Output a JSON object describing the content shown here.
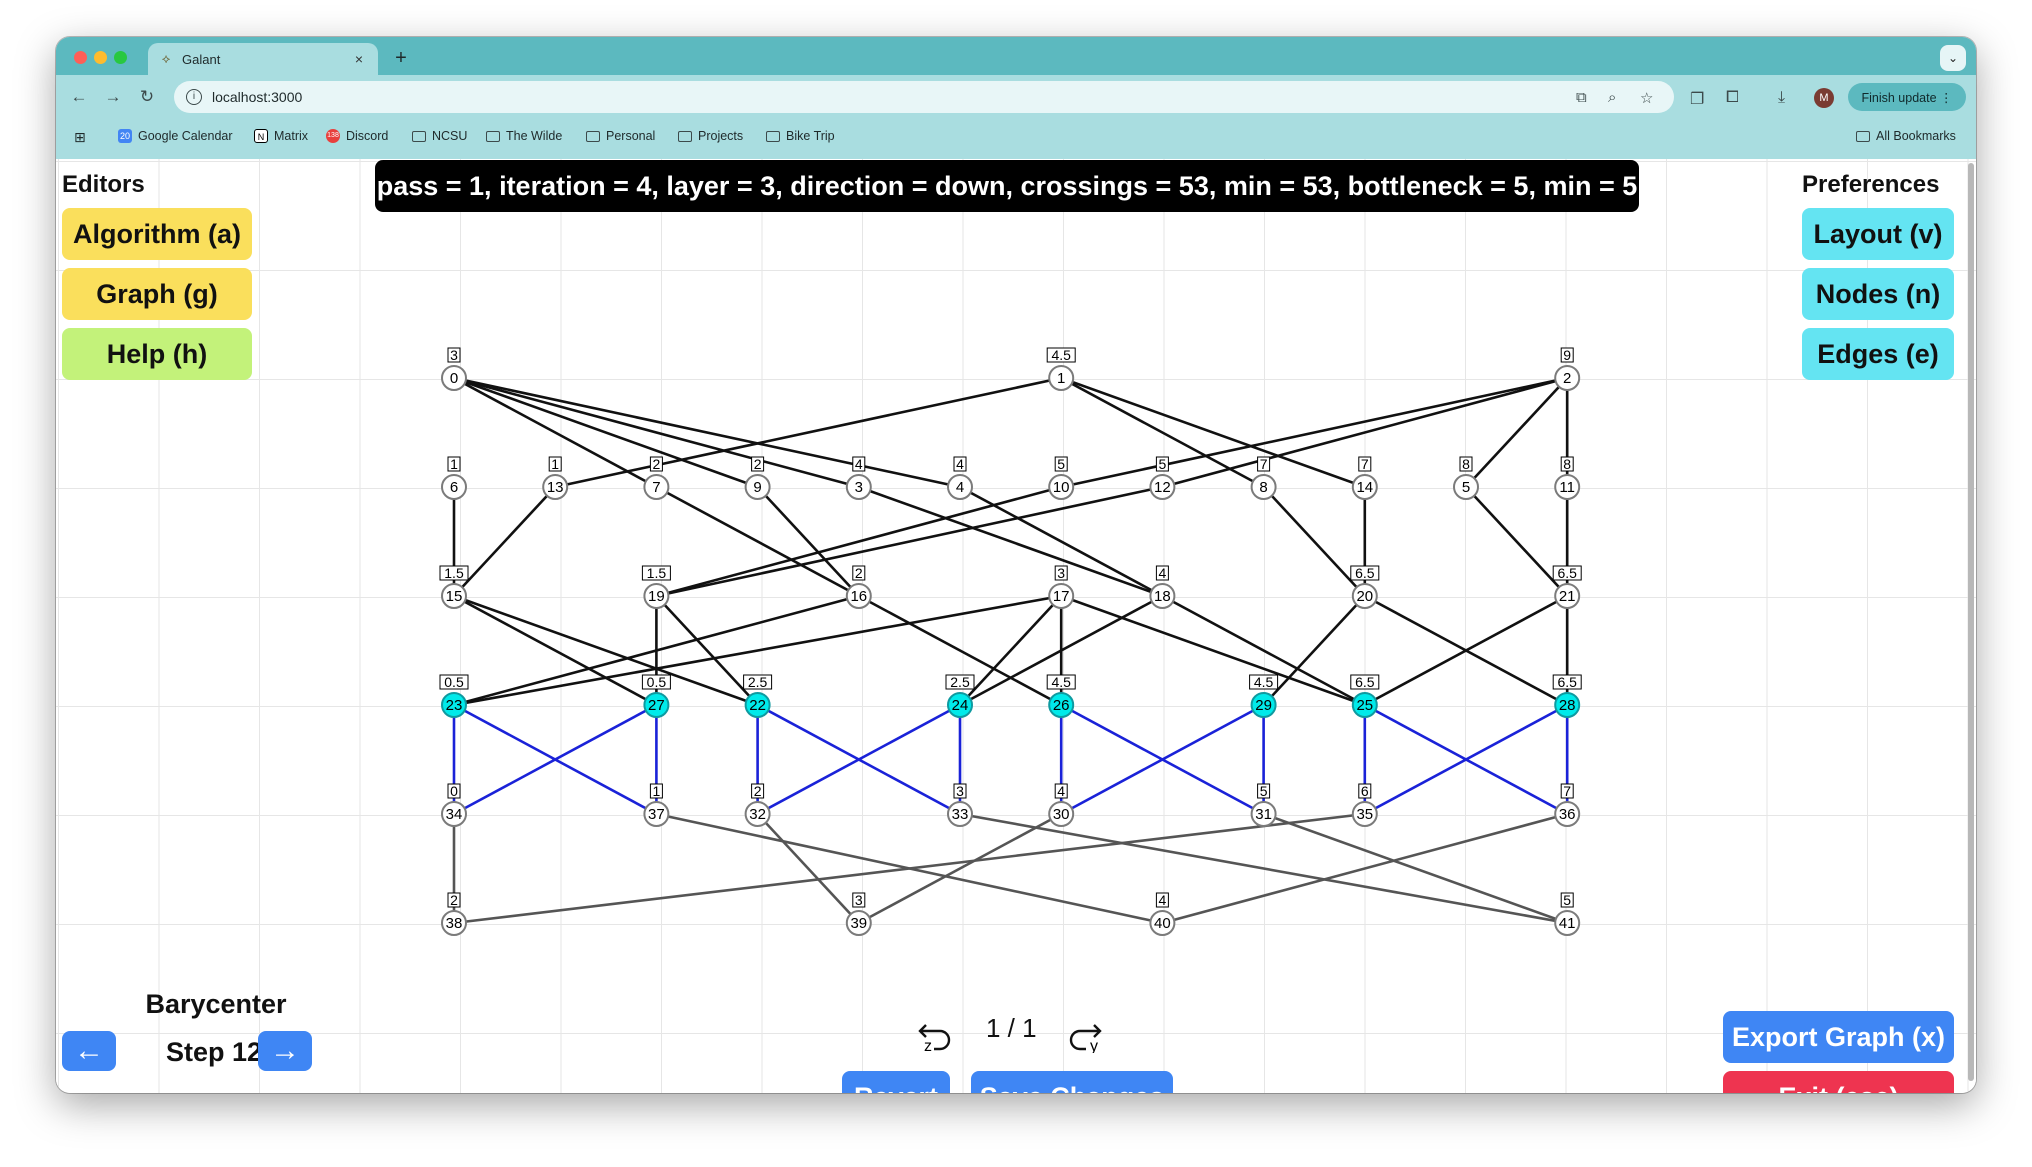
{
  "browser": {
    "tab_title": "Galant",
    "tab_close": "×",
    "new_tab": "+",
    "url": "localhost:3000",
    "finish_update": "Finish update ⋮",
    "avatar_letter": "M",
    "bookmarks": [
      "Google Calendar",
      "Matrix",
      "Discord",
      "NCSU",
      "The Wilde",
      "Personal",
      "Projects",
      "Bike Trip"
    ],
    "all_bookmarks": "All Bookmarks",
    "calendar_badge": "20",
    "discord_badge": "138"
  },
  "status_message": "pass = 1, iteration = 4, layer = 3, direction = down, crossings = 53, min = 53, bottleneck = 5, min = 5",
  "editors": {
    "heading": "Editors",
    "algorithm": "Algorithm (a)",
    "graph": "Graph (g)",
    "help": "Help (h)"
  },
  "preferences": {
    "heading": "Preferences",
    "layout": "Layout (v)",
    "nodes": "Nodes (n)",
    "edges": "Edges (e)"
  },
  "algorithm_controls": {
    "name": "Barycenter",
    "step": "Step 12",
    "prev_arrow": "←",
    "next_arrow": "→"
  },
  "history": {
    "undo_key": "z",
    "redo_key": "y",
    "position": "1 / 1"
  },
  "actions": {
    "revert": "Revert",
    "save": "Save Changes",
    "export": "Export Graph (x)",
    "exit": "Exit (esc)"
  },
  "colors": {
    "highlight_node": "#00eaea",
    "highlight_edge": "#1a22d8",
    "edge_default": "#111111",
    "edge_lower": "#555555",
    "btn_yellow": "#fadf5c",
    "btn_green": "#c3f27a",
    "btn_cyan": "#64e4f2",
    "btn_blue": "#3f86f4",
    "btn_red": "#ee3450"
  },
  "graph": {
    "nodes": [
      {
        "id": "0",
        "w": "3",
        "layer": 0,
        "slot": 0
      },
      {
        "id": "1",
        "w": "4.5",
        "layer": 0,
        "slot": 6
      },
      {
        "id": "2",
        "w": "9",
        "layer": 0,
        "slot": 11
      },
      {
        "id": "6",
        "w": "1",
        "layer": 1,
        "slot": 0
      },
      {
        "id": "13",
        "w": "1",
        "layer": 1,
        "slot": 1
      },
      {
        "id": "7",
        "w": "2",
        "layer": 1,
        "slot": 2
      },
      {
        "id": "9",
        "w": "2",
        "layer": 1,
        "slot": 3
      },
      {
        "id": "3",
        "w": "4",
        "layer": 1,
        "slot": 4
      },
      {
        "id": "4",
        "w": "4",
        "layer": 1,
        "slot": 5
      },
      {
        "id": "10",
        "w": "5",
        "layer": 1,
        "slot": 6
      },
      {
        "id": "12",
        "w": "5",
        "layer": 1,
        "slot": 7
      },
      {
        "id": "8",
        "w": "7",
        "layer": 1,
        "slot": 8
      },
      {
        "id": "14",
        "w": "7",
        "layer": 1,
        "slot": 9
      },
      {
        "id": "5",
        "w": "8",
        "layer": 1,
        "slot": 10
      },
      {
        "id": "11",
        "w": "8",
        "layer": 1,
        "slot": 11
      },
      {
        "id": "15",
        "w": "1.5",
        "layer": 2,
        "slot": 0
      },
      {
        "id": "19",
        "w": "1.5",
        "layer": 2,
        "slot": 2
      },
      {
        "id": "16",
        "w": "2",
        "layer": 2,
        "slot": 4
      },
      {
        "id": "17",
        "w": "3",
        "layer": 2,
        "slot": 6
      },
      {
        "id": "18",
        "w": "4",
        "layer": 2,
        "slot": 7
      },
      {
        "id": "20",
        "w": "6.5",
        "layer": 2,
        "slot": 9
      },
      {
        "id": "21",
        "w": "6.5",
        "layer": 2,
        "slot": 11
      },
      {
        "id": "23",
        "w": "0.5",
        "layer": 3,
        "slot": 0,
        "hl": true
      },
      {
        "id": "27",
        "w": "0.5",
        "layer": 3,
        "slot": 2,
        "hl": true
      },
      {
        "id": "22",
        "w": "2.5",
        "layer": 3,
        "slot": 3,
        "hl": true
      },
      {
        "id": "24",
        "w": "2.5",
        "layer": 3,
        "slot": 5,
        "hl": true
      },
      {
        "id": "26",
        "w": "4.5",
        "layer": 3,
        "slot": 6,
        "hl": true
      },
      {
        "id": "29",
        "w": "4.5",
        "layer": 3,
        "slot": 8,
        "hl": true
      },
      {
        "id": "25",
        "w": "6.5",
        "layer": 3,
        "slot": 9,
        "hl": true
      },
      {
        "id": "28",
        "w": "6.5",
        "layer": 3,
        "slot": 11,
        "hl": true
      },
      {
        "id": "34",
        "w": "0",
        "layer": 4,
        "slot": 0
      },
      {
        "id": "37",
        "w": "1",
        "layer": 4,
        "slot": 2
      },
      {
        "id": "32",
        "w": "2",
        "layer": 4,
        "slot": 3
      },
      {
        "id": "33",
        "w": "3",
        "layer": 4,
        "slot": 5
      },
      {
        "id": "30",
        "w": "4",
        "layer": 4,
        "slot": 6
      },
      {
        "id": "31",
        "w": "5",
        "layer": 4,
        "slot": 8
      },
      {
        "id": "35",
        "w": "6",
        "layer": 4,
        "slot": 9
      },
      {
        "id": "36",
        "w": "7",
        "layer": 4,
        "slot": 11
      },
      {
        "id": "38",
        "w": "2",
        "layer": 5,
        "slot": 0
      },
      {
        "id": "39",
        "w": "3",
        "layer": 5,
        "slot": 4
      },
      {
        "id": "40",
        "w": "4",
        "layer": 5,
        "slot": 7
      },
      {
        "id": "41",
        "w": "5",
        "layer": 5,
        "slot": 11
      }
    ],
    "edges": [
      [
        "0",
        "7",
        0
      ],
      [
        "0",
        "9",
        0
      ],
      [
        "0",
        "3",
        0
      ],
      [
        "0",
        "4",
        0
      ],
      [
        "1",
        "13",
        0
      ],
      [
        "1",
        "8",
        0
      ],
      [
        "1",
        "14",
        0
      ],
      [
        "2",
        "10",
        0
      ],
      [
        "2",
        "12",
        0
      ],
      [
        "2",
        "5",
        0
      ],
      [
        "2",
        "11",
        0
      ],
      [
        "6",
        "15",
        0
      ],
      [
        "13",
        "15",
        0
      ],
      [
        "7",
        "16",
        0
      ],
      [
        "9",
        "16",
        0
      ],
      [
        "3",
        "18",
        0
      ],
      [
        "4",
        "18",
        0
      ],
      [
        "10",
        "19",
        0
      ],
      [
        "12",
        "19",
        0
      ],
      [
        "8",
        "20",
        0
      ],
      [
        "14",
        "20",
        0
      ],
      [
        "5",
        "21",
        0
      ],
      [
        "11",
        "21",
        0
      ],
      [
        "15",
        "27",
        0
      ],
      [
        "15",
        "22",
        0
      ],
      [
        "19",
        "27",
        0
      ],
      [
        "19",
        "22",
        0
      ],
      [
        "16",
        "23",
        0
      ],
      [
        "16",
        "26",
        0
      ],
      [
        "17",
        "23",
        0
      ],
      [
        "17",
        "24",
        0
      ],
      [
        "17",
        "26",
        0
      ],
      [
        "17",
        "25",
        0
      ],
      [
        "18",
        "24",
        0
      ],
      [
        "18",
        "25",
        0
      ],
      [
        "20",
        "29",
        0
      ],
      [
        "20",
        "28",
        0
      ],
      [
        "21",
        "25",
        0
      ],
      [
        "21",
        "28",
        0
      ],
      [
        "23",
        "34",
        1
      ],
      [
        "23",
        "37",
        1
      ],
      [
        "27",
        "34",
        1
      ],
      [
        "27",
        "37",
        1
      ],
      [
        "22",
        "32",
        1
      ],
      [
        "22",
        "33",
        1
      ],
      [
        "24",
        "32",
        1
      ],
      [
        "24",
        "33",
        1
      ],
      [
        "26",
        "30",
        1
      ],
      [
        "26",
        "31",
        1
      ],
      [
        "29",
        "30",
        1
      ],
      [
        "29",
        "31",
        1
      ],
      [
        "25",
        "35",
        1
      ],
      [
        "25",
        "36",
        1
      ],
      [
        "28",
        "35",
        1
      ],
      [
        "28",
        "36",
        1
      ],
      [
        "34",
        "38",
        2
      ],
      [
        "37",
        "40",
        2
      ],
      [
        "32",
        "39",
        2
      ],
      [
        "33",
        "41",
        2
      ],
      [
        "30",
        "39",
        2
      ],
      [
        "31",
        "41",
        2
      ],
      [
        "35",
        "38",
        2
      ],
      [
        "36",
        "40",
        2
      ]
    ]
  }
}
